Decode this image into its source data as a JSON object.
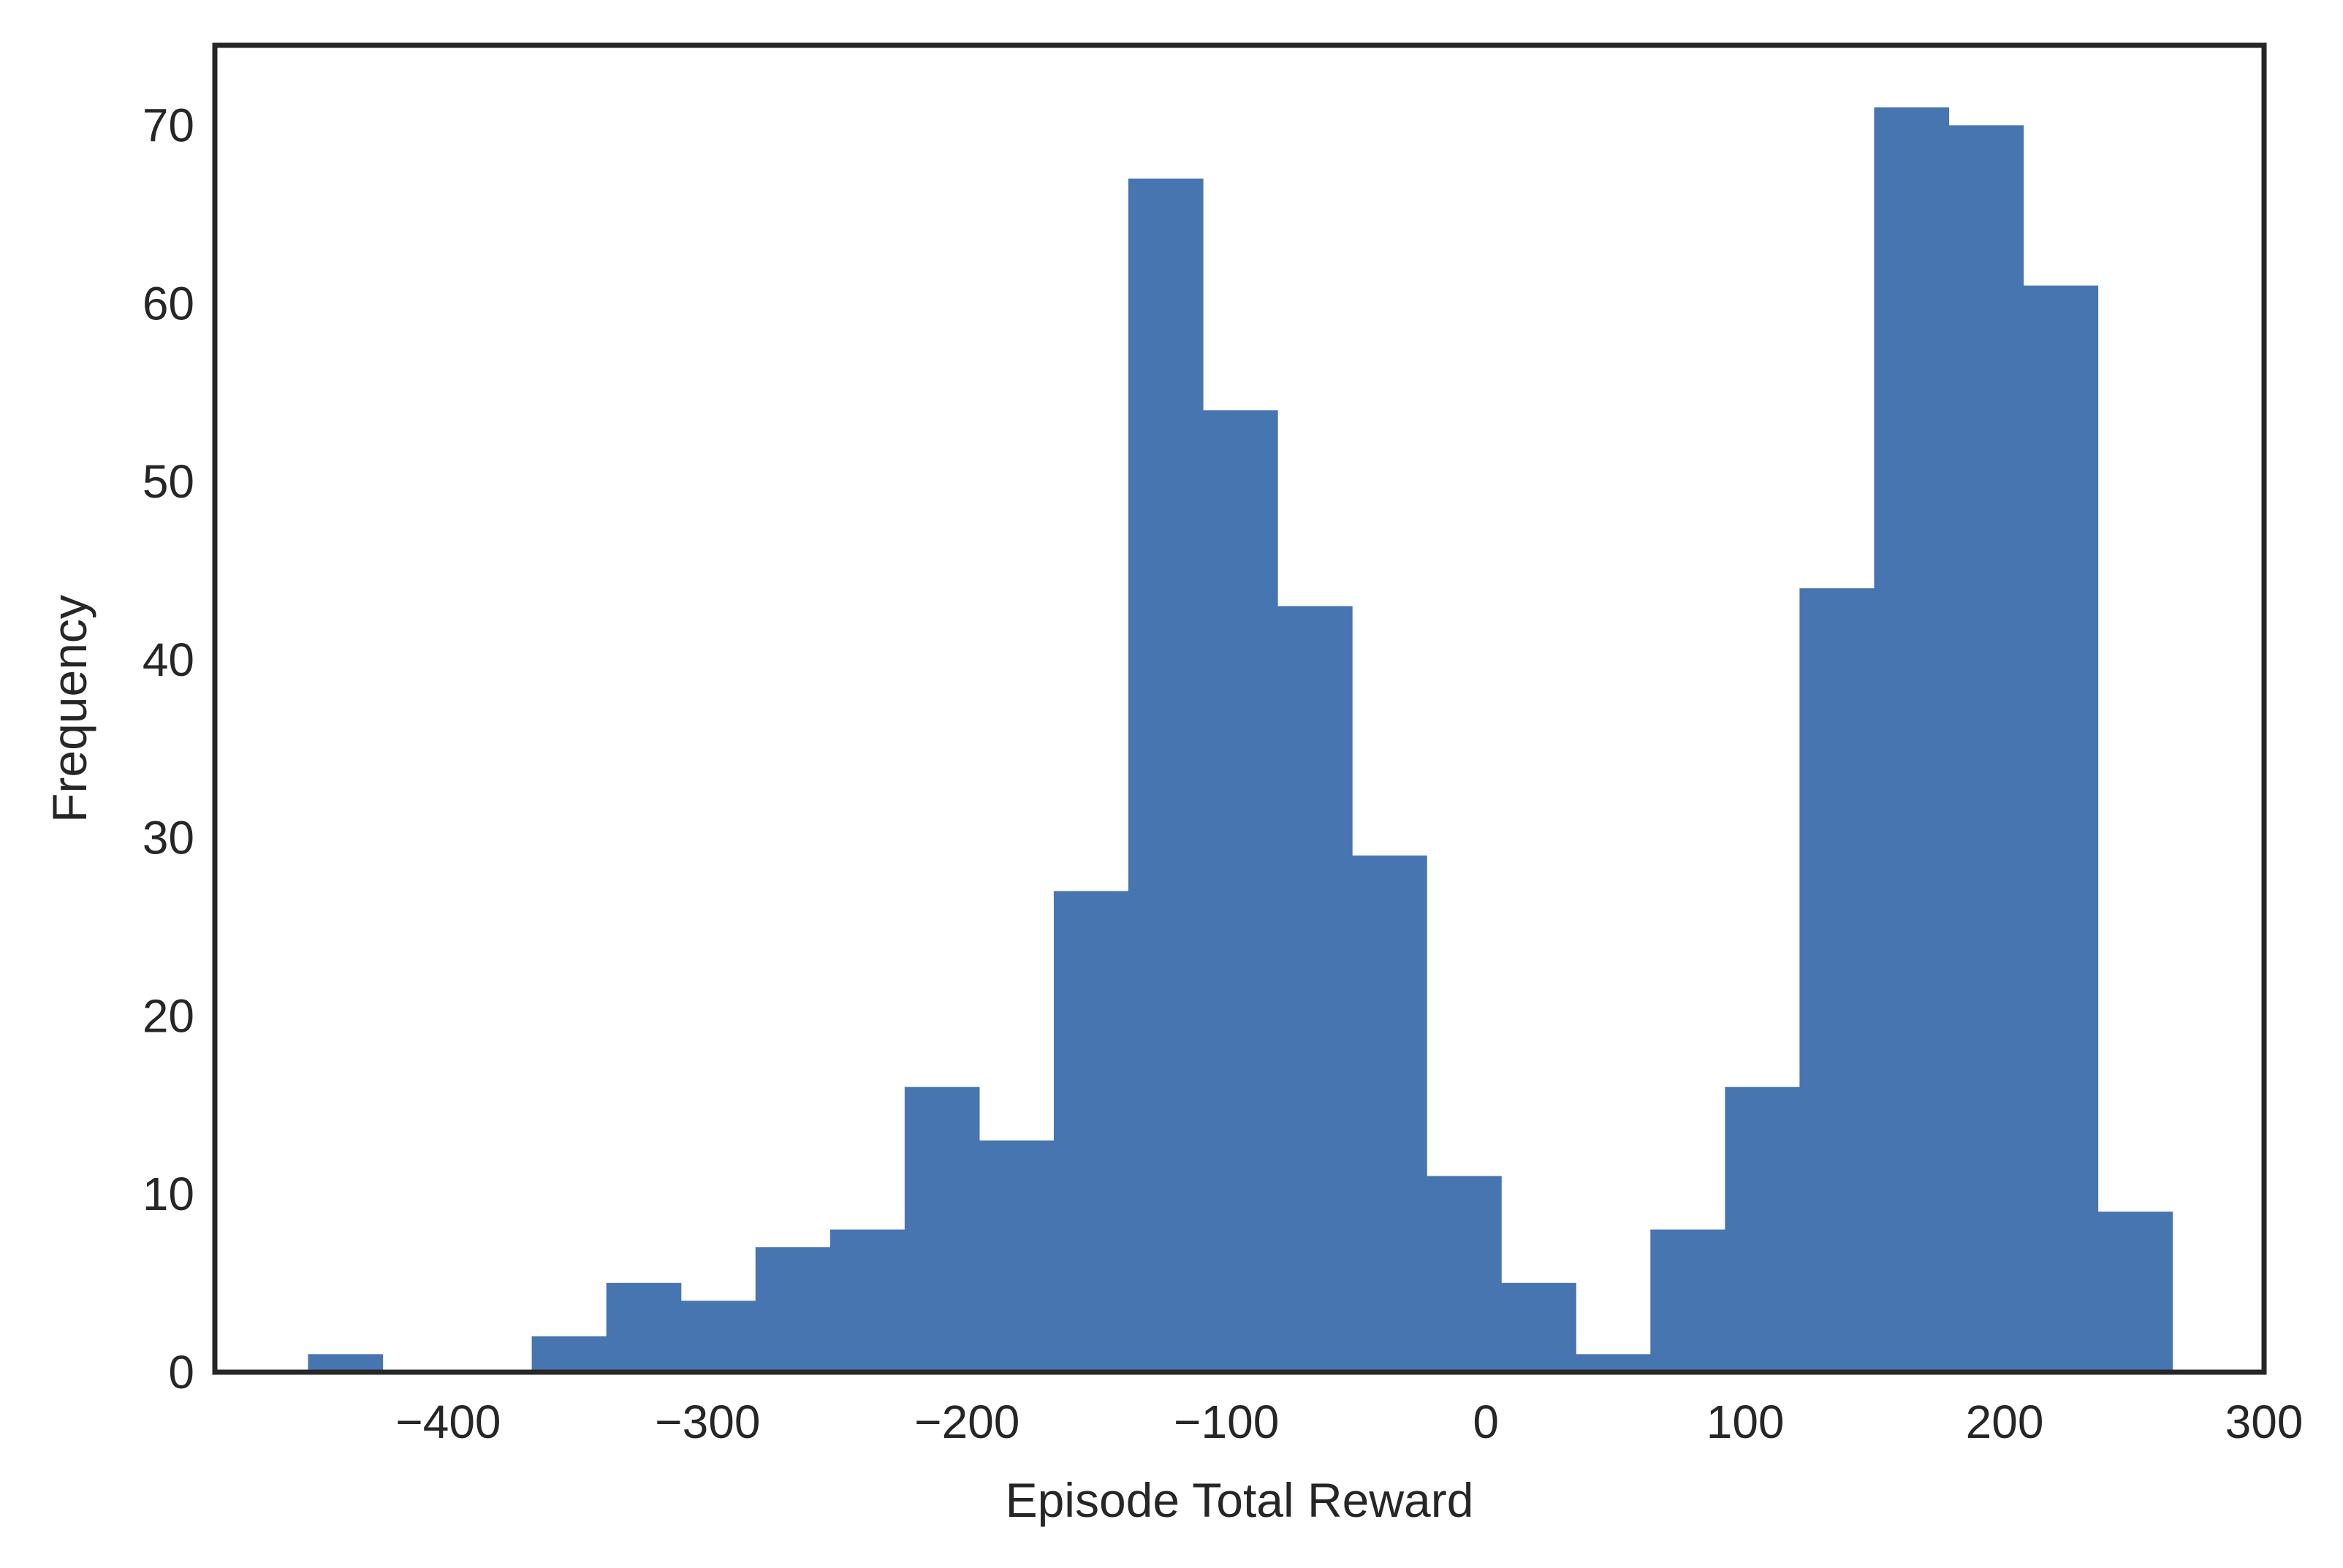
{
  "chart_data": {
    "type": "bar",
    "title": "",
    "xlabel": "Episode Total Reward",
    "ylabel": "Frequency",
    "xlim": [
      -490,
      300
    ],
    "ylim": [
      0,
      74.5
    ],
    "xticks": [
      -400,
      -300,
      -200,
      -100,
      0,
      100,
      200,
      300
    ],
    "xtick_labels": [
      "−400",
      "−300",
      "−200",
      "−100",
      "0",
      "100",
      "200",
      "300"
    ],
    "yticks": [
      0,
      10,
      20,
      30,
      40,
      50,
      60,
      70
    ],
    "ytick_labels": [
      "0",
      "10",
      "20",
      "30",
      "40",
      "50",
      "60",
      "70"
    ],
    "bin_start": -454,
    "bin_width": 28.75,
    "bin_edges": [
      -454.0,
      -425.25,
      -396.5,
      -367.75,
      -339.0,
      -310.25,
      -281.5,
      -252.75,
      -224.0,
      -195.25,
      -166.5,
      -137.75,
      -109.0,
      -80.25,
      -51.5,
      -22.75,
      6.0,
      34.75,
      63.5,
      92.25,
      121.0,
      149.75,
      178.5,
      207.25,
      236.0,
      264.75
    ],
    "values": [
      1,
      0,
      0,
      2,
      5,
      4,
      7,
      8,
      16,
      13,
      27,
      67,
      54,
      43,
      29,
      11,
      5,
      1,
      8,
      16,
      44,
      71,
      70,
      61,
      9
    ],
    "bar_color": "#4775b0",
    "grid": false,
    "frame_color": "#262626"
  }
}
